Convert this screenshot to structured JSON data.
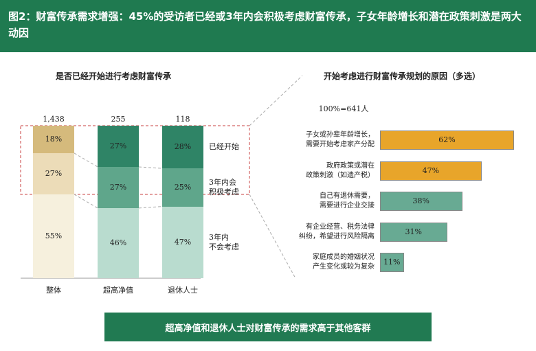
{
  "header": {
    "title": "图2：财富传承需求增强：45%的受访者已经或3年内会积极考虑财富传承，子女年龄增长和潜在政策刺激是两大动因"
  },
  "chart_data": [
    {
      "type": "stacked_bar",
      "title": "是否已经开始进行考虑财富传承",
      "categories": [
        "整体",
        "超高净值",
        "退休人士"
      ],
      "totals": {
        "values": [
          1438,
          255,
          118
        ],
        "value_labels": [
          "1,438",
          "255",
          "118"
        ]
      },
      "series": [
        {
          "name": "3年内\n不会考虑",
          "colors": [
            "#f6f0dd",
            "#b9dccf",
            "#b9dccf"
          ],
          "values": [
            55,
            46,
            47
          ],
          "value_labels": [
            "55%",
            "46%",
            "47%"
          ]
        },
        {
          "name": "3年内会\n积极考虑",
          "colors": [
            "#ecdcb8",
            "#5fa68b",
            "#5fa68b"
          ],
          "values": [
            27,
            27,
            25
          ],
          "value_labels": [
            "27%",
            "27%",
            "25%"
          ]
        },
        {
          "name": "已经开始",
          "colors": [
            "#d5ba7c",
            "#2f8466",
            "#2f8466"
          ],
          "values": [
            18,
            27,
            28
          ],
          "value_labels": [
            "18%",
            "27%",
            "28%"
          ]
        }
      ]
    },
    {
      "type": "hbar",
      "title": "开始考虑进行财富传承规划的原因（多选）",
      "subtitle": "100%=641人",
      "categories": [
        "子女或孙辈年龄增长，\n需要开始考虑家产分配",
        "政府政策或潜在\n政策刺激（如遗产税）",
        "自己有退休需要，\n需要进行企业交接",
        "有企业经营、税务法律\n纠纷，希望进行风险隔离",
        "家庭成员的婚姻状况\n产生变化或较为复杂"
      ],
      "values": [
        62,
        47,
        38,
        31,
        11
      ],
      "value_labels": [
        "62%",
        "47%",
        "38%",
        "31%",
        "11%"
      ],
      "colors": [
        "#e8a52a",
        "#e8a52a",
        "#68aa93",
        "#68aa93",
        "#68aa93"
      ]
    }
  ],
  "footer": {
    "text": "超高净值和退休人士对财富传承的需求高于其他客群"
  }
}
